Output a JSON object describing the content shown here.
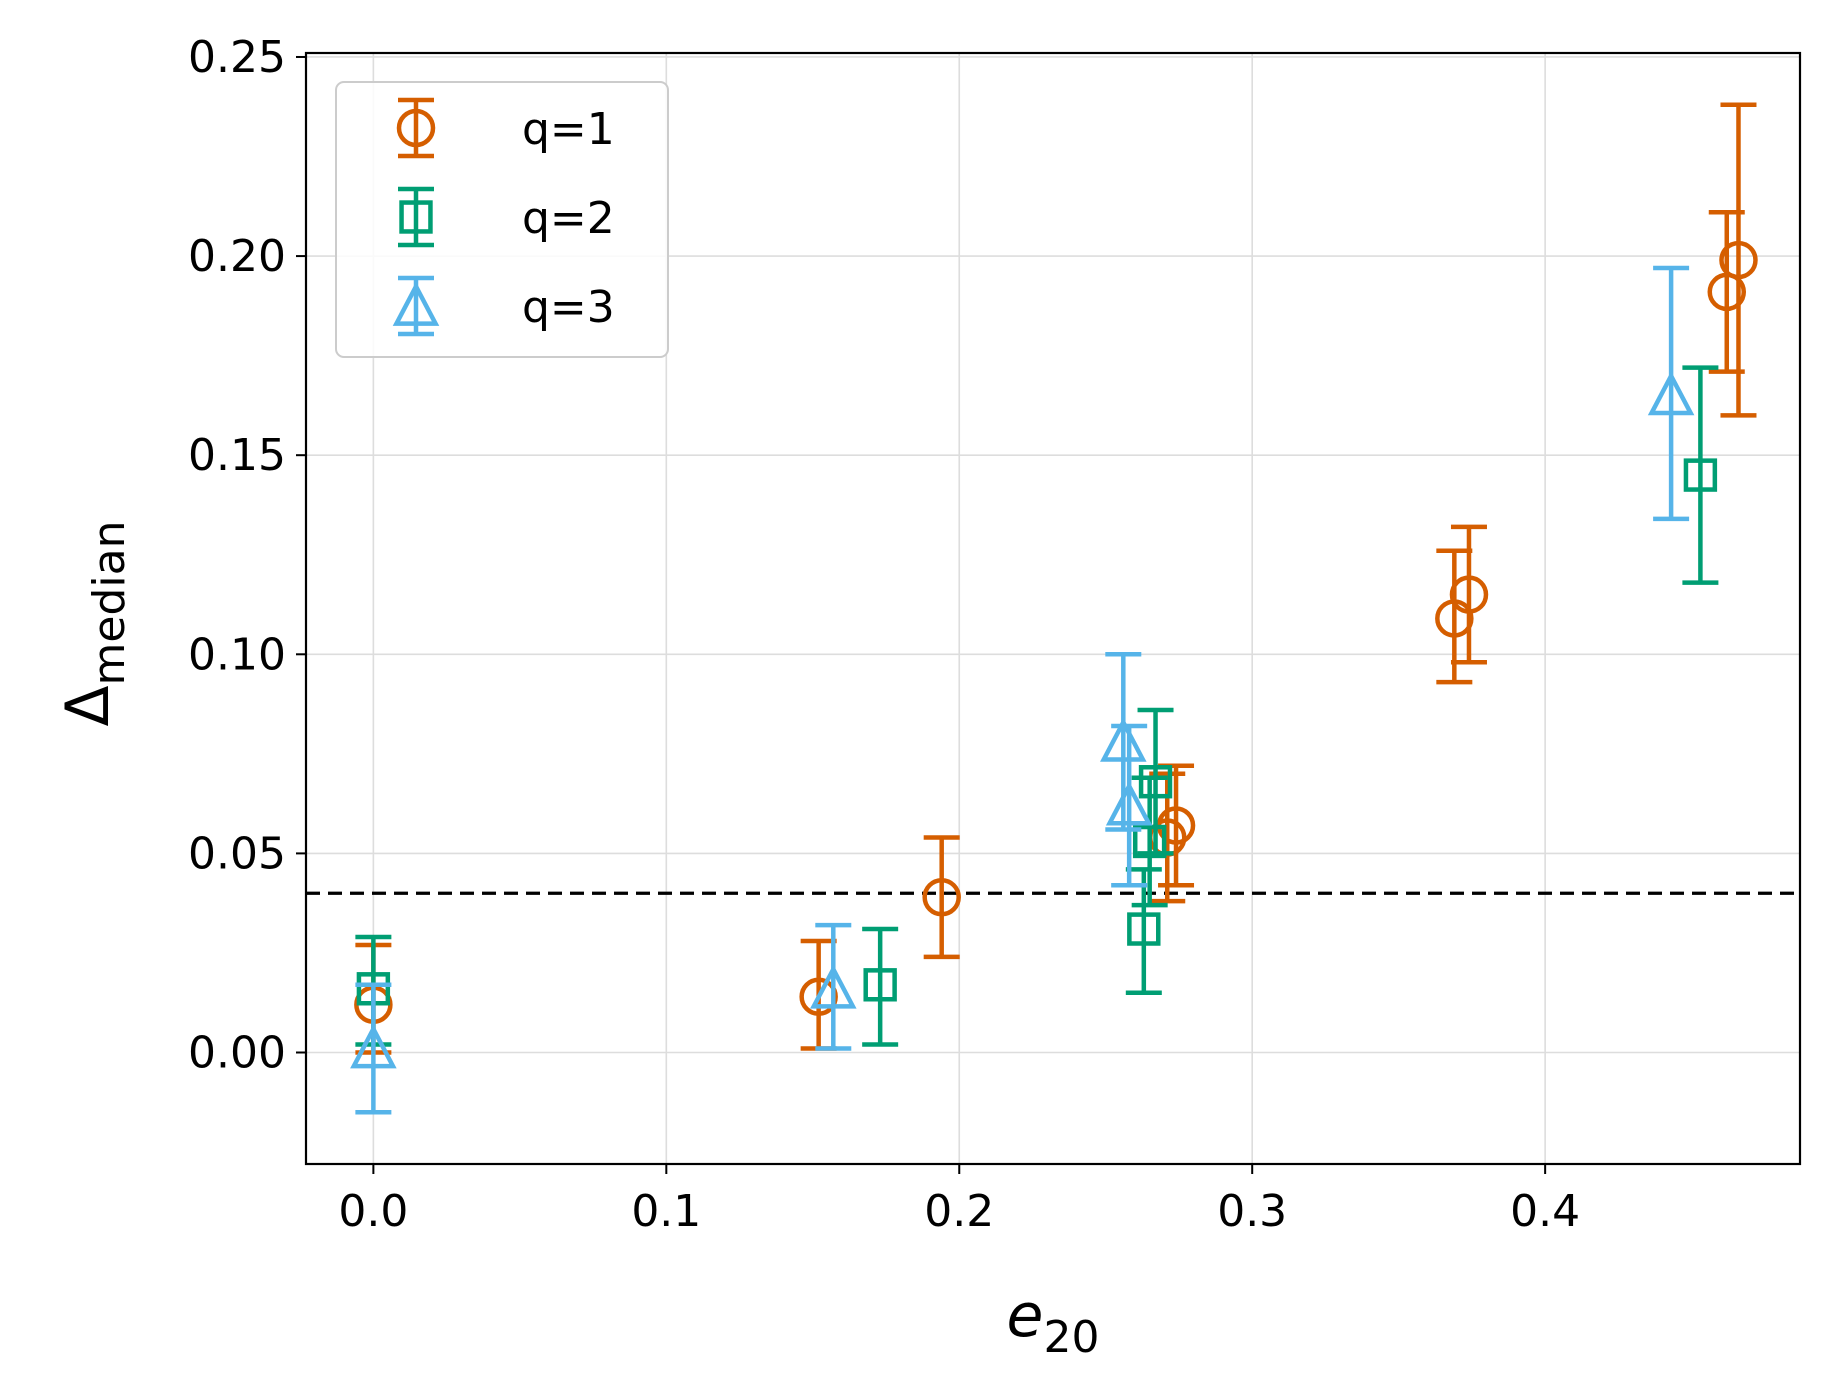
{
  "chart_data": {
    "type": "scatter",
    "title": "",
    "xlabel": {
      "main": "e",
      "sub": "20"
    },
    "ylabel": {
      "main": "Δ",
      "sub": "median"
    },
    "xlim": [
      -0.023,
      0.487
    ],
    "ylim": [
      -0.028,
      0.251
    ],
    "xticks": [
      0.0,
      0.1,
      0.2,
      0.3,
      0.4
    ],
    "xtick_labels": [
      "0.0",
      "0.1",
      "0.2",
      "0.3",
      "0.4"
    ],
    "yticks": [
      0.0,
      0.05,
      0.1,
      0.15,
      0.2,
      0.25
    ],
    "ytick_labels": [
      "0.00",
      "0.05",
      "0.10",
      "0.15",
      "0.20",
      "0.25"
    ],
    "grid": true,
    "legend_position": "top-left",
    "reference_line": {
      "y": 0.04,
      "style": "dashed",
      "color": "#000000"
    },
    "series": [
      {
        "name": "q=1",
        "color": "#D55E00",
        "marker": "circle",
        "points": [
          {
            "x": 0.0,
            "y": 0.012,
            "ylo": 0.0,
            "yhi": 0.027
          },
          {
            "x": 0.152,
            "y": 0.014,
            "ylo": 0.001,
            "yhi": 0.028
          },
          {
            "x": 0.194,
            "y": 0.039,
            "ylo": 0.024,
            "yhi": 0.054
          },
          {
            "x": 0.271,
            "y": 0.054,
            "ylo": 0.038,
            "yhi": 0.07
          },
          {
            "x": 0.274,
            "y": 0.057,
            "ylo": 0.042,
            "yhi": 0.072
          },
          {
            "x": 0.369,
            "y": 0.109,
            "ylo": 0.093,
            "yhi": 0.126
          },
          {
            "x": 0.374,
            "y": 0.115,
            "ylo": 0.098,
            "yhi": 0.132
          },
          {
            "x": 0.462,
            "y": 0.191,
            "ylo": 0.171,
            "yhi": 0.211
          },
          {
            "x": 0.466,
            "y": 0.199,
            "ylo": 0.16,
            "yhi": 0.238
          }
        ]
      },
      {
        "name": "q=2",
        "color": "#009E73",
        "marker": "square",
        "points": [
          {
            "x": 0.0,
            "y": 0.016,
            "ylo": 0.002,
            "yhi": 0.029
          },
          {
            "x": 0.173,
            "y": 0.017,
            "ylo": 0.002,
            "yhi": 0.031
          },
          {
            "x": 0.263,
            "y": 0.031,
            "ylo": 0.015,
            "yhi": 0.046
          },
          {
            "x": 0.265,
            "y": 0.053,
            "ylo": 0.037,
            "yhi": 0.069
          },
          {
            "x": 0.267,
            "y": 0.068,
            "ylo": 0.05,
            "yhi": 0.086
          },
          {
            "x": 0.453,
            "y": 0.145,
            "ylo": 0.118,
            "yhi": 0.172
          }
        ]
      },
      {
        "name": "q=3",
        "color": "#56B4E9",
        "marker": "triangle",
        "points": [
          {
            "x": 0.0,
            "y": 0.001,
            "ylo": -0.015,
            "yhi": 0.017
          },
          {
            "x": 0.157,
            "y": 0.016,
            "ylo": 0.001,
            "yhi": 0.032
          },
          {
            "x": 0.256,
            "y": 0.078,
            "ylo": 0.056,
            "yhi": 0.1
          },
          {
            "x": 0.258,
            "y": 0.062,
            "ylo": 0.042,
            "yhi": 0.082
          },
          {
            "x": 0.443,
            "y": 0.165,
            "ylo": 0.134,
            "yhi": 0.197
          }
        ]
      }
    ]
  }
}
